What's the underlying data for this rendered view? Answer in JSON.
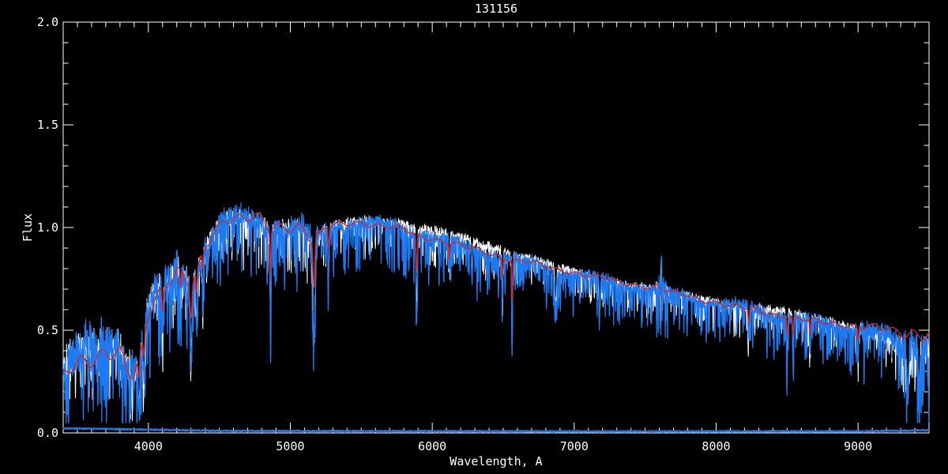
{
  "window": {
    "title": "131156"
  },
  "chart_data": {
    "type": "line",
    "title": "131156",
    "xlabel": "Wavelength, A",
    "ylabel": "Flux",
    "xlim": [
      3400,
      9500
    ],
    "ylim": [
      0.0,
      2.0
    ],
    "x_ticks": [
      4000,
      5000,
      6000,
      7000,
      8000,
      9000
    ],
    "x_minor_step": 100,
    "y_ticks": [
      0.0,
      0.5,
      1.0,
      1.5,
      2.0
    ],
    "y_tick_labels": [
      "0.0",
      "0.5",
      "1.0",
      "1.5",
      "2.0"
    ],
    "y_minor_step": 0.1,
    "grid": false,
    "legend": "none",
    "background_color": "#000000",
    "axis_color": "#FFFFFF",
    "series": [
      {
        "name": "observed-spectrum-white",
        "color": "#FFFFFF",
        "role": "observed raw spectrum"
      },
      {
        "name": "observed-spectrum-blue",
        "color": "#1E7AF0",
        "role": "observed spectrum (main, noisy with absorption lines)"
      },
      {
        "name": "model-fit-red",
        "color": "#E02020",
        "role": "smooth template / model fit"
      },
      {
        "name": "error-spectrum-blue",
        "color": "#1E7AF0",
        "role": "error spectrum along flux=0"
      }
    ],
    "continuum_points": [
      [
        3400,
        0.32
      ],
      [
        3450,
        0.38
      ],
      [
        3500,
        0.4
      ],
      [
        3550,
        0.42
      ],
      [
        3600,
        0.43
      ],
      [
        3650,
        0.42
      ],
      [
        3700,
        0.44
      ],
      [
        3750,
        0.42
      ],
      [
        3800,
        0.4
      ],
      [
        3850,
        0.33
      ],
      [
        3900,
        0.3
      ],
      [
        3950,
        0.42
      ],
      [
        4000,
        0.62
      ],
      [
        4050,
        0.7
      ],
      [
        4100,
        0.72
      ],
      [
        4150,
        0.78
      ],
      [
        4200,
        0.8
      ],
      [
        4250,
        0.75
      ],
      [
        4300,
        0.72
      ],
      [
        4350,
        0.8
      ],
      [
        4400,
        0.9
      ],
      [
        4450,
        0.97
      ],
      [
        4500,
        1.02
      ],
      [
        4550,
        1.05
      ],
      [
        4600,
        1.06
      ],
      [
        4650,
        1.05
      ],
      [
        4700,
        1.04
      ],
      [
        4750,
        1.05
      ],
      [
        4800,
        1.03
      ],
      [
        4850,
        0.98
      ],
      [
        4900,
        1.0
      ],
      [
        4950,
        1.0
      ],
      [
        5000,
        1.0
      ],
      [
        5050,
        1.01
      ],
      [
        5100,
        1.0
      ],
      [
        5150,
        0.93
      ],
      [
        5200,
        0.96
      ],
      [
        5250,
        1.0
      ],
      [
        5300,
        1.01
      ],
      [
        5350,
        1.02
      ],
      [
        5400,
        1.02
      ],
      [
        5450,
        1.03
      ],
      [
        5500,
        1.03
      ],
      [
        5600,
        1.02
      ],
      [
        5700,
        1.01
      ],
      [
        5800,
        1.0
      ],
      [
        5900,
        0.97
      ],
      [
        6000,
        0.96
      ],
      [
        6100,
        0.94
      ],
      [
        6200,
        0.92
      ],
      [
        6300,
        0.9
      ],
      [
        6400,
        0.88
      ],
      [
        6500,
        0.86
      ],
      [
        6600,
        0.84
      ],
      [
        6700,
        0.83
      ],
      [
        6800,
        0.81
      ],
      [
        6900,
        0.79
      ],
      [
        7000,
        0.78
      ],
      [
        7100,
        0.76
      ],
      [
        7200,
        0.75
      ],
      [
        7300,
        0.73
      ],
      [
        7400,
        0.72
      ],
      [
        7500,
        0.71
      ],
      [
        7600,
        0.7
      ],
      [
        7700,
        0.68
      ],
      [
        7800,
        0.67
      ],
      [
        7900,
        0.65
      ],
      [
        8000,
        0.64
      ],
      [
        8100,
        0.62
      ],
      [
        8200,
        0.61
      ],
      [
        8300,
        0.6
      ],
      [
        8400,
        0.58
      ],
      [
        8500,
        0.57
      ],
      [
        8600,
        0.55
      ],
      [
        8700,
        0.54
      ],
      [
        8800,
        0.53
      ],
      [
        8900,
        0.52
      ],
      [
        9000,
        0.51
      ],
      [
        9100,
        0.49
      ],
      [
        9200,
        0.47
      ],
      [
        9300,
        0.45
      ],
      [
        9400,
        0.43
      ],
      [
        9500,
        0.41
      ]
    ],
    "absorption_lines": [
      {
        "wl": 3933,
        "depth": 0.25,
        "width": 8,
        "telluric": false
      },
      {
        "wl": 3968,
        "depth": 0.22,
        "width": 8,
        "telluric": false
      },
      {
        "wl": 4101,
        "depth": 0.25,
        "width": 7,
        "telluric": false
      },
      {
        "wl": 4227,
        "depth": 0.2,
        "width": 5,
        "telluric": false
      },
      {
        "wl": 4300,
        "depth": 0.32,
        "width": 10,
        "telluric": false
      },
      {
        "wl": 4340,
        "depth": 0.25,
        "width": 6,
        "telluric": false
      },
      {
        "wl": 4383,
        "depth": 0.18,
        "width": 5,
        "telluric": false
      },
      {
        "wl": 4861,
        "depth": 0.45,
        "width": 5,
        "telluric": false
      },
      {
        "wl": 5167,
        "depth": 0.52,
        "width": 9,
        "telluric": false
      },
      {
        "wl": 5270,
        "depth": 0.22,
        "width": 6,
        "telluric": false
      },
      {
        "wl": 5890,
        "depth": 0.42,
        "width": 6,
        "telluric": false
      },
      {
        "wl": 6122,
        "depth": 0.15,
        "width": 4,
        "telluric": false
      },
      {
        "wl": 6280,
        "depth": 0.18,
        "width": 5,
        "telluric": true
      },
      {
        "wl": 6495,
        "depth": 0.22,
        "width": 5,
        "telluric": false
      },
      {
        "wl": 6563,
        "depth": 0.45,
        "width": 4,
        "telluric": false
      },
      {
        "wl": 6870,
        "depth": 0.2,
        "width": 8,
        "telluric": true
      },
      {
        "wl": 7180,
        "depth": 0.16,
        "width": 7,
        "telluric": true
      },
      {
        "wl": 8230,
        "depth": 0.15,
        "width": 6,
        "telluric": false
      },
      {
        "wl": 8500,
        "depth": 0.18,
        "width": 5,
        "telluric": false
      },
      {
        "wl": 8542,
        "depth": 0.2,
        "width": 5,
        "telluric": false
      },
      {
        "wl": 8662,
        "depth": 0.18,
        "width": 5,
        "telluric": false
      },
      {
        "wl": 9000,
        "depth": 0.15,
        "width": 6,
        "telluric": false
      },
      {
        "wl": 9350,
        "depth": 0.25,
        "width": 10,
        "telluric": true
      },
      {
        "wl": 9430,
        "depth": 0.22,
        "width": 8,
        "telluric": true
      }
    ],
    "emission_feature": {
      "wl": 7614,
      "height": 0.13,
      "width": 4
    },
    "noise_zones": [
      {
        "from": 3400,
        "to": 3900,
        "band": 0.13,
        "spike": 0.38
      },
      {
        "from": 3900,
        "to": 4300,
        "band": 0.11,
        "spike": 0.36
      },
      {
        "from": 4300,
        "to": 5200,
        "band": 0.065,
        "spike": 0.33
      },
      {
        "from": 5200,
        "to": 6500,
        "band": 0.035,
        "spike": 0.26
      },
      {
        "from": 6500,
        "to": 8000,
        "band": 0.03,
        "spike": 0.2
      },
      {
        "from": 8000,
        "to": 9000,
        "band": 0.035,
        "spike": 0.22
      },
      {
        "from": 9000,
        "to": 9300,
        "band": 0.05,
        "spike": 0.26
      },
      {
        "from": 9300,
        "to": 9500,
        "band": 0.09,
        "spike": 0.35
      },
      {
        "from": 7570,
        "to": 7660,
        "band": 0.06,
        "spike": 0.3
      }
    ],
    "white_bump_zones": [
      {
        "from": 5200,
        "to": 7400,
        "amp": 0.032
      },
      {
        "from": 8100,
        "to": 9000,
        "amp": 0.022
      },
      {
        "from": 9230,
        "to": 9500,
        "amp": -0.025
      }
    ],
    "red_offset_points": [
      [
        3400,
        -0.045
      ],
      [
        3700,
        -0.02
      ],
      [
        4000,
        -0.01
      ],
      [
        4500,
        -0.01
      ],
      [
        5200,
        -0.005
      ],
      [
        6000,
        -0.005
      ],
      [
        7000,
        0.0
      ],
      [
        8000,
        0.0
      ],
      [
        9000,
        0.01
      ],
      [
        9250,
        0.03
      ],
      [
        9500,
        0.06
      ]
    ],
    "error_level_points": [
      [
        3400,
        0.022
      ],
      [
        4000,
        0.016
      ],
      [
        4500,
        0.01
      ],
      [
        7000,
        0.008
      ],
      [
        9000,
        0.008
      ],
      [
        9500,
        0.013
      ]
    ]
  }
}
